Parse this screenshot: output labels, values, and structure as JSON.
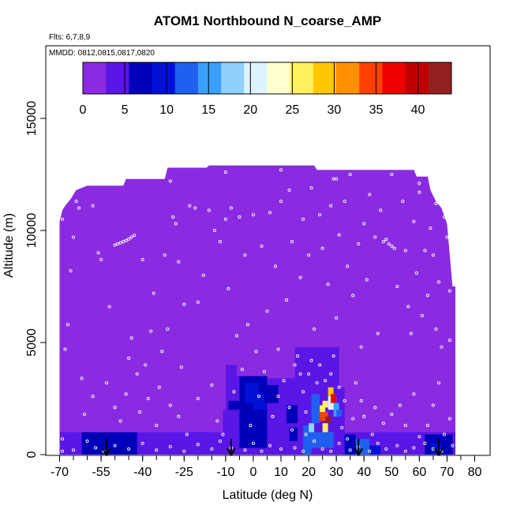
{
  "chart_data": {
    "type": "heatmap",
    "title": "ATOM1 Northbound N_coarse_AMP",
    "flights_label": "Flts: 6,7,8,9",
    "dates_label": "MMDD: 0812,0815,0817,0820",
    "xlabel": "Latitude (deg N)",
    "ylabel": "Altitude (m)",
    "xlim": [
      -70,
      80
    ],
    "ylim": [
      0,
      17000
    ],
    "x_ticks": [
      -70,
      -55,
      -40,
      -25,
      -10,
      0,
      10,
      20,
      30,
      40,
      50,
      60,
      70,
      80
    ],
    "x_tick_labels": [
      "-70",
      "-55",
      "-40",
      "-25",
      "-10",
      "0",
      "10",
      "20",
      "30",
      "40",
      "50",
      "60",
      "70",
      "80"
    ],
    "x_minor_step": 5,
    "y_ticks": [
      0,
      5000,
      10000,
      15000
    ],
    "y_tick_labels": [
      "0",
      "5000",
      "10000",
      "15000"
    ],
    "colorbar": {
      "ticks": [
        0,
        5,
        10,
        15,
        20,
        25,
        30,
        35,
        40
      ],
      "tick_labels": [
        "0",
        "5",
        "10",
        "15",
        "20",
        "25",
        "30",
        "35",
        "40"
      ],
      "range": [
        0,
        44
      ],
      "colors": [
        "#8a2be2",
        "#5a16e4",
        "#0000b8",
        "#0010d8",
        "#1f60f0",
        "#3aa0ff",
        "#8fd0ff",
        "#dff3ff",
        "#ffffd0",
        "#fff060",
        "#ffc800",
        "#ff9000",
        "#ff4000",
        "#ee0000",
        "#c00000",
        "#952020"
      ]
    },
    "upper_boundary": [
      [
        -70,
        10400
      ],
      [
        -69,
        10900
      ],
      [
        -68,
        11100
      ],
      [
        -66,
        11400
      ],
      [
        -64,
        11800
      ],
      [
        -60,
        12000
      ],
      [
        -47,
        12000
      ],
      [
        -46,
        12300
      ],
      [
        -32,
        12300
      ],
      [
        -31,
        12800
      ],
      [
        -17,
        12800
      ],
      [
        -16,
        12900
      ],
      [
        22,
        12900
      ],
      [
        23,
        12700
      ],
      [
        58,
        12700
      ],
      [
        59,
        12400
      ],
      [
        63,
        12400
      ],
      [
        64,
        11800
      ],
      [
        66,
        11300
      ],
      [
        68,
        11000
      ],
      [
        70,
        10300
      ],
      [
        72,
        7500
      ],
      [
        73,
        7500
      ],
      [
        73,
        0
      ],
      [
        -70,
        0
      ]
    ],
    "cells": [
      {
        "x": [
          -70,
          73
        ],
        "y": [
          0,
          1000
        ],
        "value": 4
      },
      {
        "x": [
          -67,
          58
        ],
        "y": [
          0,
          500
        ],
        "value": 5
      },
      {
        "x": [
          -62,
          -42
        ],
        "y": [
          0,
          1000
        ],
        "value": 6
      },
      {
        "x": [
          -60,
          -52
        ],
        "y": [
          1000,
          1700
        ],
        "value": 2
      },
      {
        "x": [
          -40,
          -28
        ],
        "y": [
          1000,
          1500
        ],
        "value": 1.5
      },
      {
        "x": [
          -22,
          -18
        ],
        "y": [
          1400,
          4000
        ],
        "value": 2
      },
      {
        "x": [
          -22,
          -16
        ],
        "y": [
          300,
          1000
        ],
        "value": 3
      },
      {
        "x": [
          -14,
          -4
        ],
        "y": [
          2500,
          4000
        ],
        "value": 2.5
      },
      {
        "x": [
          -10,
          0
        ],
        "y": [
          2000,
          4000
        ],
        "value": 3
      },
      {
        "x": [
          -6,
          14
        ],
        "y": [
          3500,
          4300
        ],
        "value": 2
      },
      {
        "x": [
          -9,
          0
        ],
        "y": [
          1200,
          2400
        ],
        "value": 5.5
      },
      {
        "x": [
          -5,
          5
        ],
        "y": [
          300,
          3500
        ],
        "value": 6
      },
      {
        "x": [
          -11,
          -5
        ],
        "y": [
          0,
          2000
        ],
        "value": 5
      },
      {
        "x": [
          -3,
          2
        ],
        "y": [
          2300,
          3200
        ],
        "value": 9
      },
      {
        "x": [
          0,
          5
        ],
        "y": [
          2000,
          2700
        ],
        "value": 10
      },
      {
        "x": [
          -1,
          4
        ],
        "y": [
          700,
          2000
        ],
        "value": 6.5
      },
      {
        "x": [
          5,
          17
        ],
        "y": [
          200,
          3400
        ],
        "value": 4
      },
      {
        "x": [
          4,
          9
        ],
        "y": [
          2300,
          3100
        ],
        "value": 5.5
      },
      {
        "x": [
          12,
          16
        ],
        "y": [
          1400,
          2200
        ],
        "value": 6
      },
      {
        "x": [
          13,
          16
        ],
        "y": [
          600,
          1200
        ],
        "value": 7
      },
      {
        "x": [
          14,
          22
        ],
        "y": [
          3800,
          5000
        ],
        "value": 1.5
      },
      {
        "x": [
          15,
          31
        ],
        "y": [
          3000,
          4800
        ],
        "value": 3
      },
      {
        "x": [
          16,
          33
        ],
        "y": [
          0,
          3000
        ],
        "value": 5
      },
      {
        "x": [
          18,
          21
        ],
        "y": [
          0,
          1300
        ],
        "value": 13
      },
      {
        "x": [
          20,
          29
        ],
        "y": [
          300,
          1000
        ],
        "value": 12
      },
      {
        "x": [
          20,
          22
        ],
        "y": [
          1000,
          1400
        ],
        "value": 18
      },
      {
        "x": [
          21,
          24
        ],
        "y": [
          1400,
          2700
        ],
        "value": 11
      },
      {
        "x": [
          24,
          26
        ],
        "y": [
          1900,
          2200
        ],
        "value": 27
      },
      {
        "x": [
          24,
          27
        ],
        "y": [
          1500,
          1900
        ],
        "value": 35
      },
      {
        "x": [
          25,
          27
        ],
        "y": [
          2100,
          2400
        ],
        "value": 26
      },
      {
        "x": [
          26,
          28
        ],
        "y": [
          1400,
          1700
        ],
        "value": 43
      },
      {
        "x": [
          25,
          27
        ],
        "y": [
          1000,
          1400
        ],
        "value": 26
      },
      {
        "x": [
          27,
          30
        ],
        "y": [
          2000,
          2600
        ],
        "value": 20
      },
      {
        "x": [
          27,
          29
        ],
        "y": [
          2600,
          3000
        ],
        "value": 30
      },
      {
        "x": [
          28,
          30
        ],
        "y": [
          2300,
          2700
        ],
        "value": 37
      },
      {
        "x": [
          29,
          31
        ],
        "y": [
          1700,
          2300
        ],
        "value": 15
      },
      {
        "x": [
          30,
          32
        ],
        "y": [
          1700,
          2000
        ],
        "value": 11
      },
      {
        "x": [
          33,
          37
        ],
        "y": [
          0,
          900
        ],
        "value": 7
      },
      {
        "x": [
          37,
          42
        ],
        "y": [
          0,
          700
        ],
        "value": 12
      },
      {
        "x": [
          42,
          46
        ],
        "y": [
          0,
          400
        ],
        "value": 9
      },
      {
        "x": [
          62,
          72
        ],
        "y": [
          0,
          900
        ],
        "value": 6
      },
      {
        "x": [
          64,
          68
        ],
        "y": [
          0,
          500
        ],
        "value": 9
      }
    ],
    "sample_points": [
      [
        -56,
        9000
      ],
      [
        -55,
        8700
      ],
      [
        -50,
        9350
      ],
      [
        -49,
        9400
      ],
      [
        -48,
        9450
      ],
      [
        -47,
        9500
      ],
      [
        -46,
        9550
      ],
      [
        -45,
        9620
      ],
      [
        -44,
        9700
      ],
      [
        -43,
        9780
      ],
      [
        -44,
        5200
      ],
      [
        -45,
        4300
      ],
      [
        -40,
        8700
      ],
      [
        -39,
        4000
      ],
      [
        -37,
        5500
      ],
      [
        -36,
        7200
      ],
      [
        -34,
        3000
      ],
      [
        -32,
        8900
      ],
      [
        -31,
        5600
      ],
      [
        -29,
        10600
      ],
      [
        -28,
        10300
      ],
      [
        -27,
        8600
      ],
      [
        -25,
        6700
      ],
      [
        -23,
        11100
      ],
      [
        -21,
        11000
      ],
      [
        -20,
        6800
      ],
      [
        -18,
        8000
      ],
      [
        -16,
        10900
      ],
      [
        -14,
        10000
      ],
      [
        -12,
        9500
      ],
      [
        -10,
        10500
      ],
      [
        -9,
        7400
      ],
      [
        -8,
        11000
      ],
      [
        -6,
        5300
      ],
      [
        -5,
        10600
      ],
      [
        -3,
        8900
      ],
      [
        -2,
        5800
      ],
      [
        0,
        10700
      ],
      [
        1,
        4600
      ],
      [
        3,
        9300
      ],
      [
        5,
        6400
      ],
      [
        6,
        10800
      ],
      [
        8,
        8400
      ],
      [
        9,
        4700
      ],
      [
        10,
        11300
      ],
      [
        12,
        6900
      ],
      [
        13,
        11800
      ],
      [
        14,
        9500
      ],
      [
        15,
        4000
      ],
      [
        17,
        7900
      ],
      [
        18,
        10500
      ],
      [
        20,
        8900
      ],
      [
        21,
        11900
      ],
      [
        22,
        5600
      ],
      [
        24,
        10700
      ],
      [
        25,
        9200
      ],
      [
        27,
        7600
      ],
      [
        28,
        11100
      ],
      [
        29,
        12300
      ],
      [
        30,
        6100
      ],
      [
        31,
        9800
      ],
      [
        33,
        11300
      ],
      [
        34,
        8400
      ],
      [
        35,
        12500
      ],
      [
        36,
        7100
      ],
      [
        38,
        9400
      ],
      [
        39,
        4800
      ],
      [
        40,
        10300
      ],
      [
        41,
        7800
      ],
      [
        42,
        11600
      ],
      [
        44,
        9700
      ],
      [
        45,
        5400
      ],
      [
        46,
        10900
      ],
      [
        47,
        9500
      ],
      [
        48,
        9600
      ],
      [
        49,
        9400
      ],
      [
        50,
        9300
      ],
      [
        51,
        9200
      ],
      [
        52,
        7500
      ],
      [
        54,
        11300
      ],
      [
        55,
        9100
      ],
      [
        56,
        6600
      ],
      [
        57,
        5400
      ],
      [
        58,
        10400
      ],
      [
        59,
        8100
      ],
      [
        60,
        11700
      ],
      [
        61,
        6200
      ],
      [
        62,
        9100
      ],
      [
        63,
        7100
      ],
      [
        64,
        10100
      ],
      [
        65,
        8900
      ],
      [
        66,
        5600
      ],
      [
        67,
        7700
      ],
      [
        68,
        4800
      ],
      [
        69,
        10600
      ],
      [
        70,
        9700
      ],
      [
        71,
        5100
      ],
      [
        -65,
        9700
      ],
      [
        -66,
        8200
      ],
      [
        -67,
        5800
      ],
      [
        -68,
        4700
      ],
      [
        -64,
        11300
      ],
      [
        -62,
        3400
      ],
      [
        -61,
        1800
      ],
      [
        -58,
        2600
      ],
      [
        -53,
        3200
      ],
      [
        -52,
        6600
      ],
      [
        -50,
        2100
      ],
      [
        -48,
        1500
      ],
      [
        -46,
        2700
      ],
      [
        -42,
        3600
      ],
      [
        -41,
        1900
      ],
      [
        -38,
        2500
      ],
      [
        -35,
        1300
      ],
      [
        -33,
        4600
      ],
      [
        -30,
        2200
      ],
      [
        -27,
        1700
      ],
      [
        -26,
        3900
      ],
      [
        -24,
        900
      ],
      [
        -20,
        2500
      ],
      [
        -15,
        3100
      ],
      [
        -13,
        1500
      ],
      [
        -11,
        900
      ],
      [
        -7,
        2800
      ],
      [
        -4,
        3800
      ],
      [
        -1,
        1300
      ],
      [
        2,
        2600
      ],
      [
        4,
        3700
      ],
      [
        7,
        1700
      ],
      [
        9,
        2600
      ],
      [
        11,
        3300
      ],
      [
        13,
        2100
      ],
      [
        14,
        1100
      ],
      [
        16,
        4400
      ],
      [
        17,
        3600
      ],
      [
        18,
        2800
      ],
      [
        19,
        1900
      ],
      [
        19,
        900
      ],
      [
        20,
        3600
      ],
      [
        21,
        4200
      ],
      [
        23,
        3200
      ],
      [
        24,
        4000
      ],
      [
        26,
        3300
      ],
      [
        28,
        3600
      ],
      [
        29,
        4400
      ],
      [
        31,
        3000
      ],
      [
        32,
        1200
      ],
      [
        33,
        2400
      ],
      [
        34,
        700
      ],
      [
        36,
        1600
      ],
      [
        37,
        3200
      ],
      [
        39,
        2400
      ],
      [
        40,
        1700
      ],
      [
        43,
        900
      ],
      [
        44,
        2100
      ],
      [
        47,
        1400
      ],
      [
        50,
        1800
      ],
      [
        53,
        2200
      ],
      [
        55,
        1300
      ],
      [
        58,
        2700
      ],
      [
        60,
        800
      ],
      [
        63,
        1300
      ],
      [
        65,
        2200
      ],
      [
        67,
        3200
      ],
      [
        69,
        900
      ],
      [
        71,
        1600
      ],
      [
        -69,
        700
      ],
      [
        -69,
        150
      ],
      [
        -65,
        200
      ],
      [
        -60,
        600
      ],
      [
        -57,
        300
      ],
      [
        -54,
        150
      ],
      [
        -50,
        400
      ],
      [
        -45,
        250
      ],
      [
        -40,
        500
      ],
      [
        -35,
        200
      ],
      [
        -30,
        350
      ],
      [
        -25,
        150
      ],
      [
        -20,
        450
      ],
      [
        -15,
        250
      ],
      [
        -12,
        600
      ],
      [
        -8,
        300
      ],
      [
        -3,
        200
      ],
      [
        0,
        500
      ],
      [
        3,
        150
      ],
      [
        6,
        400
      ],
      [
        10,
        250
      ],
      [
        15,
        300
      ],
      [
        18,
        150
      ],
      [
        22,
        600
      ],
      [
        25,
        250
      ],
      [
        28,
        150
      ],
      [
        31,
        500
      ],
      [
        35,
        200
      ],
      [
        38,
        350
      ],
      [
        42,
        150
      ],
      [
        45,
        500
      ],
      [
        48,
        250
      ],
      [
        52,
        400
      ],
      [
        55,
        150
      ],
      [
        58,
        300
      ],
      [
        62,
        500
      ],
      [
        65,
        250
      ],
      [
        68,
        150
      ],
      [
        72,
        400
      ],
      [
        71,
        7300
      ],
      [
        72,
        8300
      ],
      [
        -58,
        11100
      ],
      [
        -63,
        11000
      ],
      [
        -69,
        10500
      ],
      [
        -30,
        12200
      ],
      [
        -10,
        12600
      ],
      [
        10,
        12700
      ],
      [
        30,
        12300
      ],
      [
        50,
        12500
      ],
      [
        60,
        12100
      ],
      [
        66,
        11200
      ]
    ],
    "arrows_lat": [
      -53,
      -8,
      38,
      67
    ]
  }
}
